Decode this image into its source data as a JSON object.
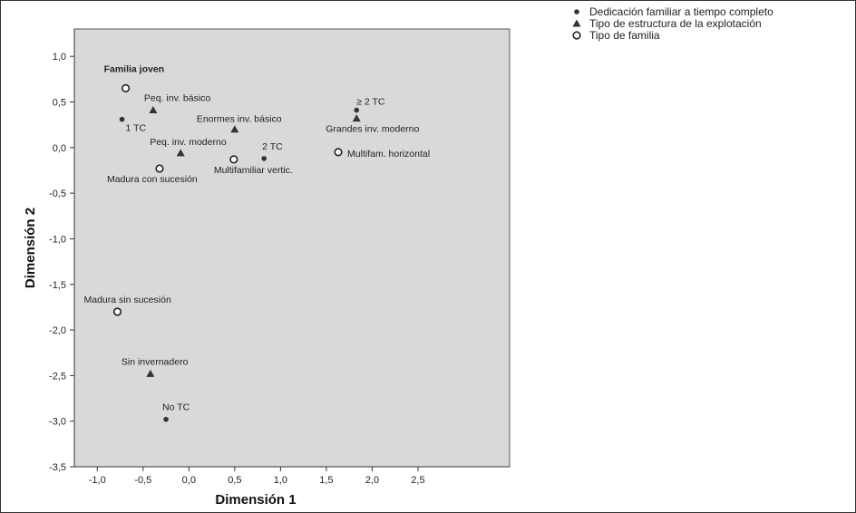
{
  "chart_data": {
    "type": "scatter",
    "xlabel": "Dimensión 1",
    "ylabel": "Dimensión 2",
    "xlim": [
      -1.25,
      3.5
    ],
    "ylim": [
      -3.5,
      1.3
    ],
    "x_ticks": [
      -1.0,
      -0.5,
      0.0,
      0.5,
      1.0,
      1.5,
      2.0,
      2.5
    ],
    "x_tick_labels": [
      "-1,0",
      "-0,5",
      "0,0",
      "0,5",
      "1,0",
      "1,5",
      "2,0",
      "2,5"
    ],
    "y_ticks": [
      1.0,
      0.5,
      0.0,
      -0.5,
      -1.0,
      -1.5,
      -2.0,
      -2.5,
      -3.0,
      -3.5
    ],
    "y_tick_labels": [
      "1,0",
      "0,5",
      "0,0",
      "-0,5",
      "-1,0",
      "-1,5",
      "-2,0",
      "-2,5",
      "-3,0",
      "-3,5"
    ],
    "grid": false,
    "plot_background": "#d9d9d9",
    "legend_position": "top-right",
    "series": [
      {
        "name": "Dedicación familiar a tiempo completo",
        "marker": "dot",
        "points": [
          {
            "x": -0.73,
            "y": 0.31,
            "label": "1 TC"
          },
          {
            "x": 0.82,
            "y": -0.12,
            "label": "2 TC"
          },
          {
            "x": 1.83,
            "y": 0.41,
            "label": "≥ 2 TC"
          },
          {
            "x": -0.25,
            "y": -2.98,
            "label": "No TC"
          }
        ]
      },
      {
        "name": "Tipo de estructura de la explotación",
        "marker": "triangle",
        "points": [
          {
            "x": -0.39,
            "y": 0.41,
            "label": "Peq. inv. básico"
          },
          {
            "x": -0.09,
            "y": -0.06,
            "label": "Peq. inv. moderno"
          },
          {
            "x": 0.5,
            "y": 0.2,
            "label": "Enormes inv. básico"
          },
          {
            "x": 1.83,
            "y": 0.32,
            "label": "Grandes inv. moderno"
          },
          {
            "x": -0.42,
            "y": -2.48,
            "label": "Sin invernadero"
          }
        ]
      },
      {
        "name": "Tipo de familia",
        "marker": "circle",
        "points": [
          {
            "x": -0.69,
            "y": 0.65,
            "label": "Familia joven"
          },
          {
            "x": -0.32,
            "y": -0.23,
            "label": "Madura con sucesión"
          },
          {
            "x": 0.49,
            "y": -0.13,
            "label": "Multifamiliar vertic."
          },
          {
            "x": 1.63,
            "y": -0.05,
            "label": "Multifam. horizontal"
          },
          {
            "x": -0.78,
            "y": -1.8,
            "label": "Madura sin sucesión"
          }
        ]
      }
    ]
  }
}
